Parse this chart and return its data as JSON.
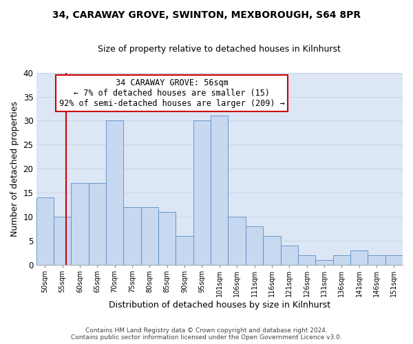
{
  "title1": "34, CARAWAY GROVE, SWINTON, MEXBOROUGH, S64 8PR",
  "title2": "Size of property relative to detached houses in Kilnhurst",
  "xlabel": "Distribution of detached houses by size in Kilnhurst",
  "ylabel": "Number of detached properties",
  "categories": [
    "50sqm",
    "55sqm",
    "60sqm",
    "65sqm",
    "70sqm",
    "75sqm",
    "80sqm",
    "85sqm",
    "90sqm",
    "95sqm",
    "101sqm",
    "106sqm",
    "111sqm",
    "116sqm",
    "121sqm",
    "126sqm",
    "131sqm",
    "136sqm",
    "141sqm",
    "146sqm",
    "151sqm"
  ],
  "values": [
    14,
    10,
    17,
    17,
    30,
    12,
    12,
    11,
    6,
    30,
    31,
    10,
    8,
    6,
    4,
    2,
    1,
    2,
    3,
    2,
    2
  ],
  "bar_color": "#c6d9f1",
  "bar_edge_color": "#5b8ac6",
  "grid_color": "#c8d4e8",
  "background_color": "#dce6f4",
  "property_line_color": "#cc0000",
  "annotation_text": "34 CARAWAY GROVE: 56sqm\n← 7% of detached houses are smaller (15)\n92% of semi-detached houses are larger (209) →",
  "annotation_box_color": "#ffffff",
  "annotation_box_edge": "#cc0000",
  "footer1": "Contains HM Land Registry data © Crown copyright and database right 2024.",
  "footer2": "Contains public sector information licensed under the Open Government Licence v3.0.",
  "ylim": [
    0,
    40
  ],
  "yticks": [
    0,
    5,
    10,
    15,
    20,
    25,
    30,
    35,
    40
  ],
  "line_x_index": 1.2
}
